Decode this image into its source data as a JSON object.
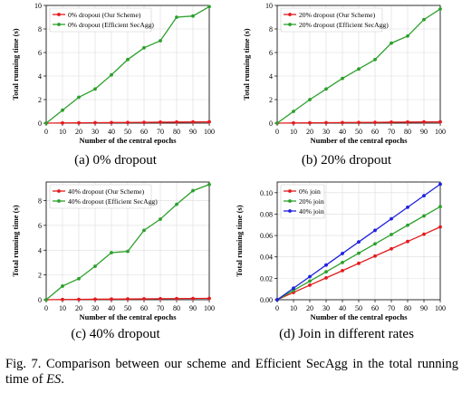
{
  "chart_data": [
    {
      "type": "line",
      "subcaption": "(a)   0% dropout",
      "xlabel": "Number of the central epochs",
      "ylabel": "Total running time (s)",
      "xlim": [
        0,
        100
      ],
      "ylim": [
        0,
        10
      ],
      "xticks": [
        "0",
        "10",
        "20",
        "30",
        "40",
        "50",
        "60",
        "70",
        "80",
        "90",
        "100"
      ],
      "yticks": [
        "0",
        "2",
        "4",
        "6",
        "8",
        "10"
      ],
      "grid": true,
      "legend": "top-left",
      "x": [
        0,
        10,
        20,
        30,
        40,
        50,
        60,
        70,
        80,
        90,
        100
      ],
      "series": [
        {
          "name": "0% dropout (Our Scheme)",
          "color": "#e41a1c",
          "values": [
            0,
            0.02,
            0.03,
            0.04,
            0.05,
            0.06,
            0.07,
            0.08,
            0.09,
            0.1,
            0.11
          ]
        },
        {
          "name": "0% dropout (Efficient SecAgg)",
          "color": "#2ca02c",
          "values": [
            0,
            1.1,
            2.2,
            2.9,
            4.1,
            5.4,
            6.4,
            7.0,
            9.0,
            9.1,
            9.9
          ]
        }
      ]
    },
    {
      "type": "line",
      "subcaption": "(b)   20% dropout",
      "xlabel": "Number of the central epochs",
      "ylabel": "Total running time (s)",
      "xlim": [
        0,
        100
      ],
      "ylim": [
        0,
        10
      ],
      "xticks": [
        "0",
        "10",
        "20",
        "30",
        "40",
        "50",
        "60",
        "70",
        "80",
        "90",
        "100"
      ],
      "yticks": [
        "0",
        "2",
        "4",
        "6",
        "8",
        "10"
      ],
      "grid": true,
      "legend": "top-left",
      "x": [
        0,
        10,
        20,
        30,
        40,
        50,
        60,
        70,
        80,
        90,
        100
      ],
      "series": [
        {
          "name": "20% dropout (Our Scheme)",
          "color": "#e41a1c",
          "values": [
            0,
            0.02,
            0.03,
            0.04,
            0.05,
            0.06,
            0.07,
            0.08,
            0.09,
            0.1,
            0.11
          ]
        },
        {
          "name": "20% dropout (Efficient SecAgg)",
          "color": "#2ca02c",
          "values": [
            0,
            1.0,
            2.0,
            2.9,
            3.8,
            4.6,
            5.4,
            6.8,
            7.4,
            8.8,
            9.7
          ]
        }
      ]
    },
    {
      "type": "line",
      "subcaption": "(c)   40% dropout",
      "xlabel": "Number of the central epochs",
      "ylabel": "Total running time (s)",
      "xlim": [
        0,
        100
      ],
      "ylim": [
        0,
        9.5
      ],
      "xticks": [
        "0",
        "10",
        "20",
        "30",
        "40",
        "50",
        "60",
        "70",
        "80",
        "90",
        "100"
      ],
      "yticks": [
        "0",
        "2",
        "4",
        "6",
        "8"
      ],
      "grid": true,
      "legend": "top-left",
      "x": [
        0,
        10,
        20,
        30,
        40,
        50,
        60,
        70,
        80,
        90,
        100
      ],
      "series": [
        {
          "name": "40% dropout (Our Scheme)",
          "color": "#e41a1c",
          "values": [
            0,
            0.02,
            0.03,
            0.04,
            0.05,
            0.06,
            0.07,
            0.08,
            0.09,
            0.1,
            0.11
          ]
        },
        {
          "name": "40% dropout (Efficient SecAgg)",
          "color": "#2ca02c",
          "values": [
            0,
            1.1,
            1.7,
            2.7,
            3.8,
            3.9,
            5.6,
            6.5,
            7.7,
            8.8,
            9.3
          ]
        }
      ]
    },
    {
      "type": "line",
      "subcaption": "(d)   Join in different rates",
      "xlabel": "Number of the central epochs",
      "ylabel": "Total running time (s)",
      "xlim": [
        0,
        100
      ],
      "ylim": [
        0,
        0.11
      ],
      "xticks": [
        "0",
        "10",
        "20",
        "30",
        "40",
        "50",
        "60",
        "70",
        "80",
        "90",
        "100"
      ],
      "yticks": [
        "0.00",
        "0.02",
        "0.04",
        "0.06",
        "0.08",
        "0.10"
      ],
      "grid": true,
      "legend": "top-left",
      "x": [
        0,
        10,
        20,
        30,
        40,
        50,
        60,
        70,
        80,
        90,
        100
      ],
      "series": [
        {
          "name": "0% join",
          "color": "#e41a1c",
          "values": [
            0,
            0.0068,
            0.0136,
            0.0204,
            0.0272,
            0.034,
            0.0408,
            0.0476,
            0.0544,
            0.0612,
            0.068
          ]
        },
        {
          "name": "20% join",
          "color": "#2ca02c",
          "values": [
            0,
            0.0087,
            0.0174,
            0.0261,
            0.0348,
            0.0435,
            0.0522,
            0.0609,
            0.0696,
            0.0783,
            0.087
          ]
        },
        {
          "name": "40% join",
          "color": "#1f1fe0",
          "values": [
            0,
            0.0108,
            0.0216,
            0.0324,
            0.0432,
            0.054,
            0.0648,
            0.0756,
            0.0864,
            0.0972,
            0.108
          ]
        }
      ]
    }
  ],
  "caption": {
    "main": "Fig. 7.   Comparison between our scheme and Efficient SecAgg in the total running time of ",
    "es": "ES",
    "end": "."
  }
}
